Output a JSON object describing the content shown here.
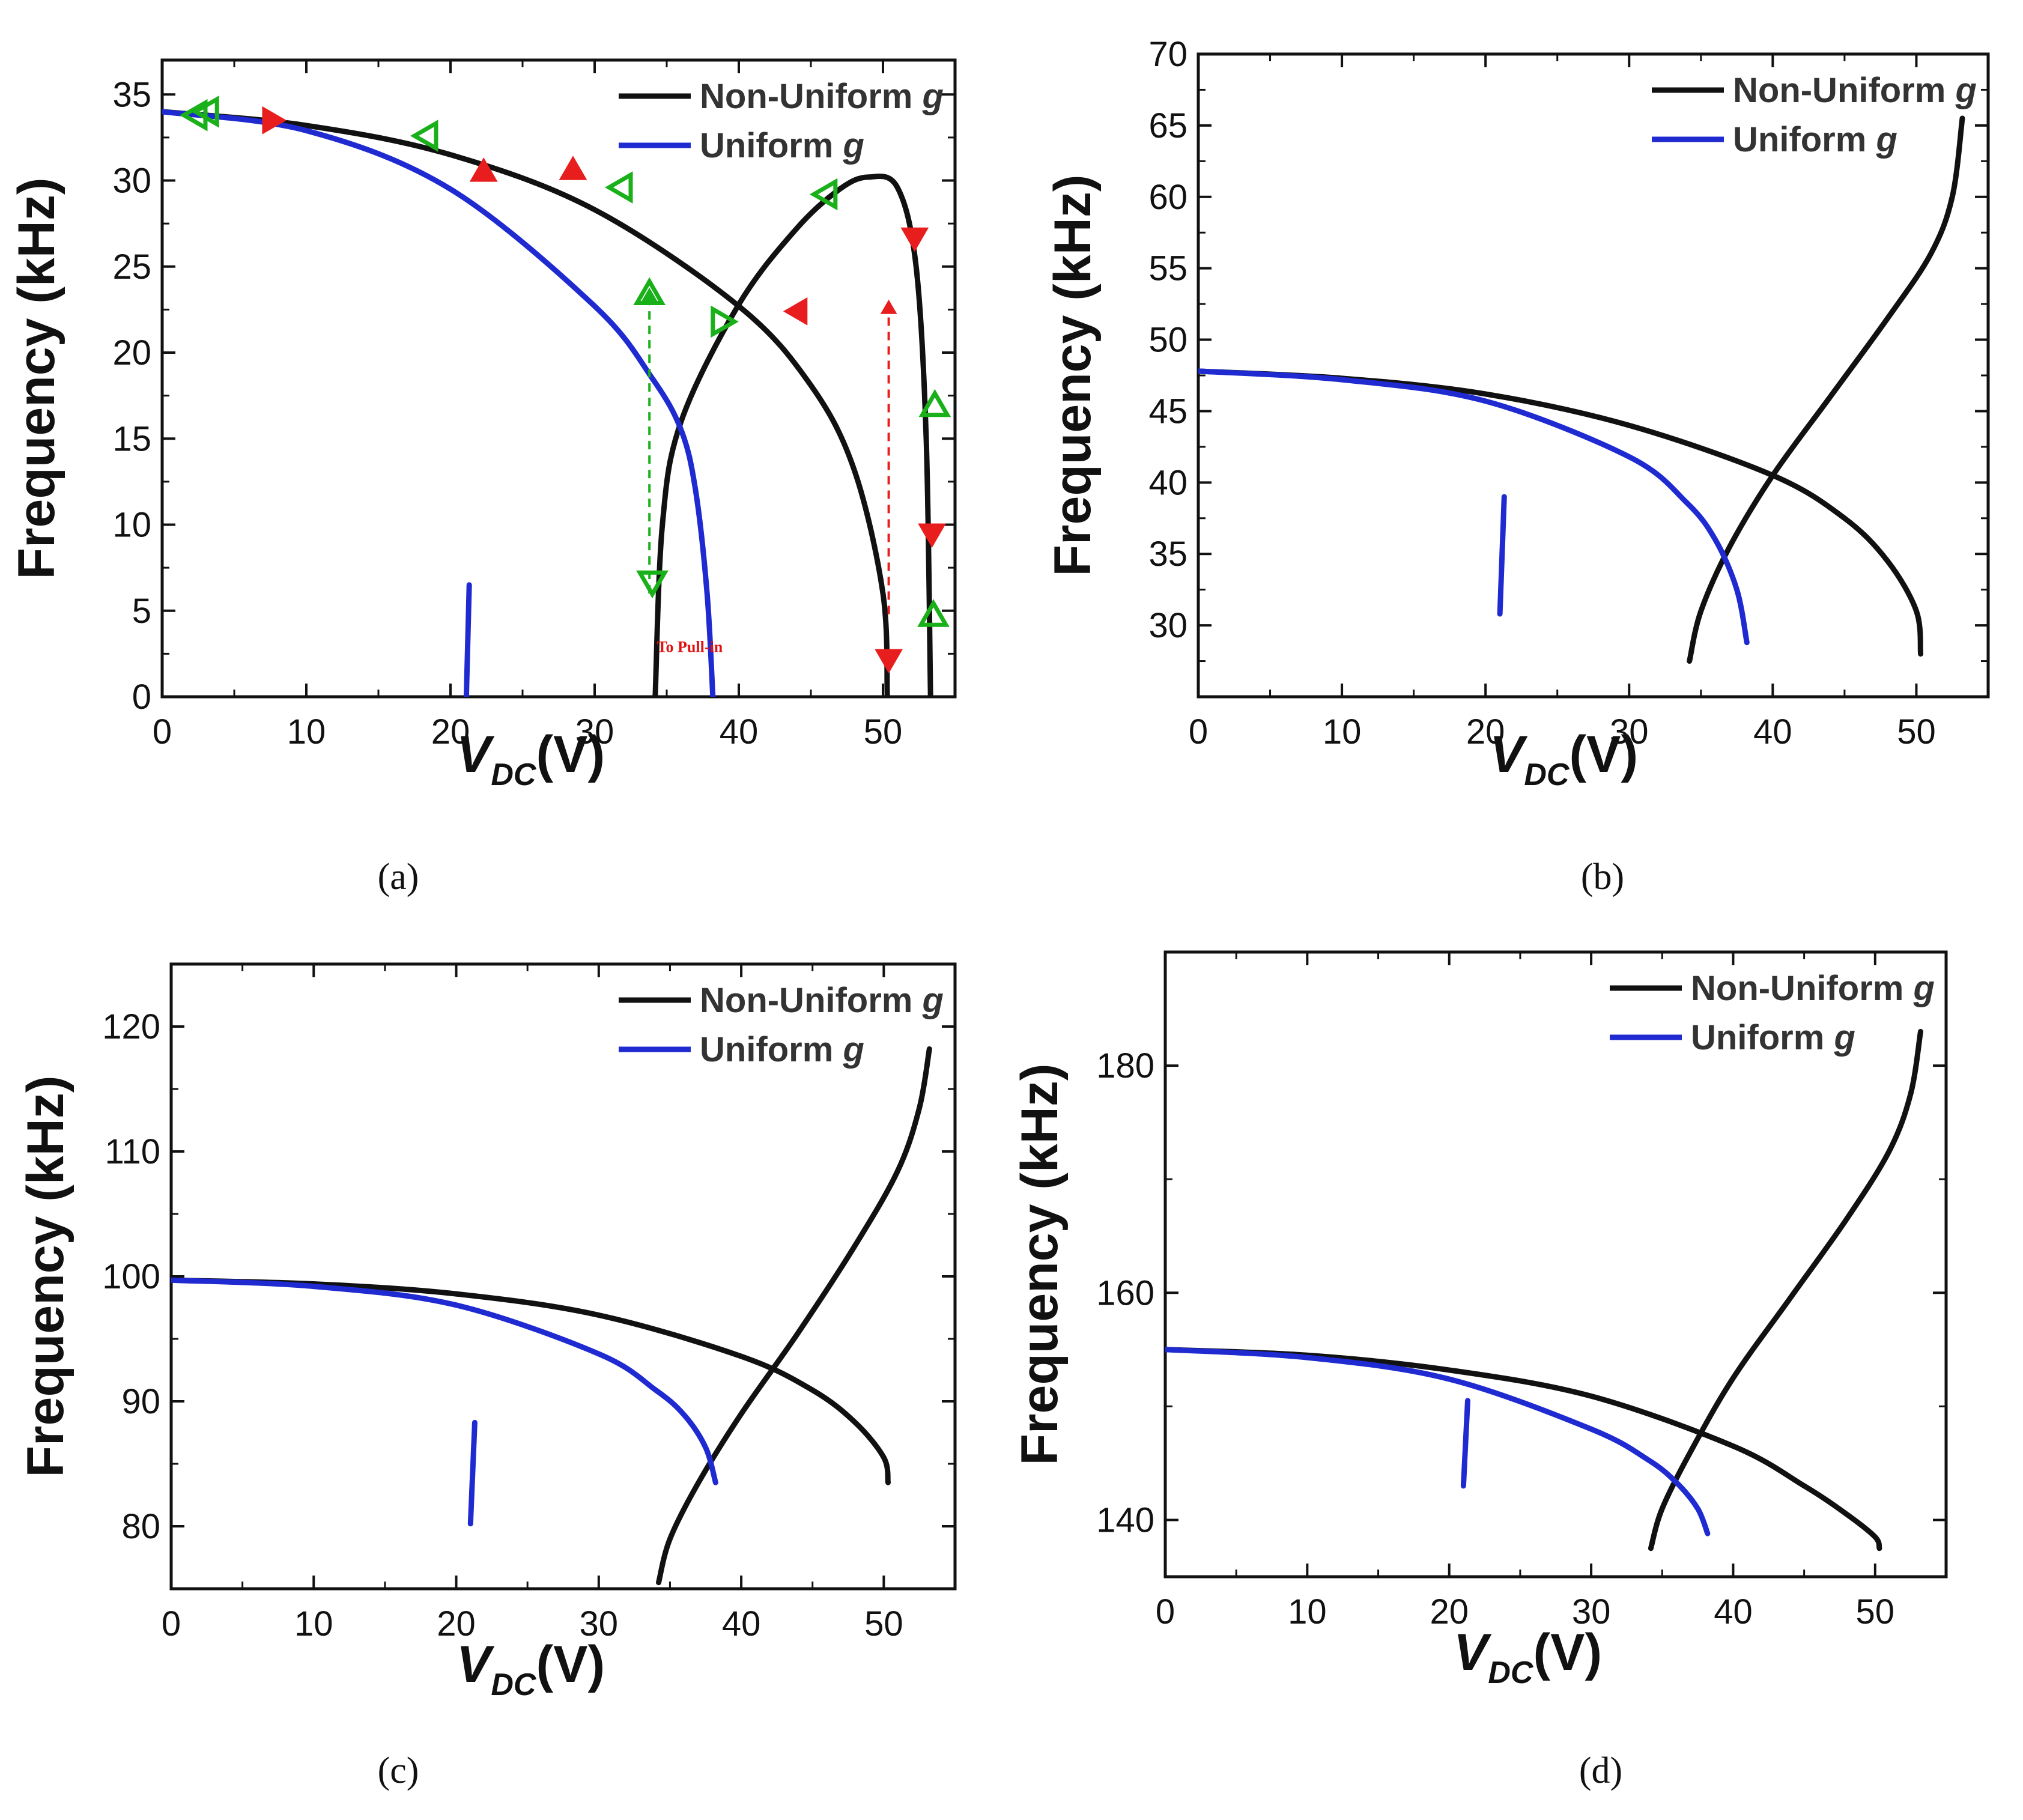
{
  "colors": {
    "non_uniform": "#111111",
    "uniform": "#1f2bd1",
    "marker_green": "#19b019",
    "marker_red": "#e81e1e"
  },
  "chart_data": [
    {
      "panel": "(a)",
      "type": "line",
      "xlabel": "V",
      "xlabel_sub": "DC",
      "xlabel_unit": "(V)",
      "ylabel": "Frequency (kHz)",
      "xlim": [
        0,
        55
      ],
      "ylim": [
        0,
        37
      ],
      "xticks": [
        0,
        10,
        20,
        30,
        40,
        50
      ],
      "yticks": [
        0,
        5,
        10,
        15,
        20,
        25,
        30,
        35
      ],
      "legend": [
        "Non-Uniform",
        "Uniform"
      ],
      "legend_italic": "g",
      "annotation": "To Pull-in",
      "series": [
        {
          "name": "Non-Uniform g (branch 1)",
          "color_key": "non_uniform",
          "x": [
            0,
            10,
            20,
            30,
            40,
            45,
            48,
            50,
            50.3
          ],
          "y": [
            34,
            33.2,
            31.5,
            28.3,
            22.7,
            18.1,
            13.2,
            6,
            0
          ]
        },
        {
          "name": "Non-Uniform g (branch 2)",
          "color_key": "non_uniform",
          "x": [
            34.2,
            34.7,
            36,
            40,
            44,
            47,
            49,
            51,
            52.3,
            53,
            53.3
          ],
          "y": [
            0,
            10,
            16,
            22.8,
            27.2,
            29.5,
            30.2,
            29.6,
            25,
            15,
            0
          ]
        },
        {
          "name": "Uniform g (branch 1)",
          "color_key": "uniform",
          "x": [
            0,
            10,
            20,
            30,
            34,
            36,
            37,
            37.8,
            38.2
          ],
          "y": [
            34,
            32.9,
            29.5,
            22.7,
            18.5,
            15.5,
            12,
            6,
            0
          ]
        },
        {
          "name": "Uniform g (branch 2)",
          "color_key": "uniform",
          "x": [
            21.1,
            21.3
          ],
          "y": [
            0,
            6.5
          ]
        }
      ],
      "markers": [
        {
          "x": 2.5,
          "y": 33.8,
          "color_key": "marker_green",
          "dir": "left"
        },
        {
          "x": 3.3,
          "y": 34.0,
          "color_key": "marker_green",
          "dir": "left"
        },
        {
          "x": 7.5,
          "y": 33.5,
          "color_key": "marker_red",
          "dir": "right"
        },
        {
          "x": 18.5,
          "y": 32.6,
          "color_key": "marker_green",
          "dir": "left"
        },
        {
          "x": 22.3,
          "y": 30.4,
          "color_key": "marker_red",
          "dir": "up"
        },
        {
          "x": 28.5,
          "y": 30.5,
          "color_key": "marker_red",
          "dir": "up"
        },
        {
          "x": 32.0,
          "y": 29.6,
          "color_key": "marker_green",
          "dir": "left"
        },
        {
          "x": 33.8,
          "y": 23.3,
          "color_key": "marker_green",
          "dir": "up"
        },
        {
          "x": 38.7,
          "y": 21.8,
          "color_key": "marker_green",
          "dir": "right"
        },
        {
          "x": 44.2,
          "y": 22.4,
          "color_key": "marker_red",
          "dir": "left"
        },
        {
          "x": 46.2,
          "y": 29.2,
          "color_key": "marker_green",
          "dir": "left"
        },
        {
          "x": 52.2,
          "y": 26.8,
          "color_key": "marker_red",
          "dir": "down"
        },
        {
          "x": 53.6,
          "y": 16.8,
          "color_key": "marker_green",
          "dir": "up"
        },
        {
          "x": 53.4,
          "y": 9.6,
          "color_key": "marker_red",
          "dir": "down"
        },
        {
          "x": 53.5,
          "y": 4.6,
          "color_key": "marker_green",
          "dir": "up"
        },
        {
          "x": 34.0,
          "y": 6.8,
          "color_key": "marker_green",
          "dir": "down"
        },
        {
          "x": 50.4,
          "y": 2.3,
          "color_key": "marker_red",
          "dir": "down"
        }
      ],
      "dashed_arrows": [
        {
          "x": 33.8,
          "y0": 6.0,
          "y1": 23.5,
          "color_key": "marker_green"
        },
        {
          "x": 50.4,
          "y0": 4.8,
          "y1": 22.8,
          "color_key": "marker_red"
        }
      ]
    },
    {
      "panel": "(b)",
      "type": "line",
      "xlabel": "V",
      "xlabel_sub": "DC",
      "xlabel_unit": "(V)",
      "ylabel": "Frequency (kHz)",
      "xlim": [
        0,
        55
      ],
      "ylim": [
        25,
        70
      ],
      "xticks": [
        0,
        10,
        20,
        30,
        40,
        50
      ],
      "yticks": [
        30,
        35,
        40,
        45,
        50,
        55,
        60,
        65,
        70
      ],
      "legend": [
        "Non-Uniform",
        "Uniform"
      ],
      "legend_italic": "g",
      "series": [
        {
          "name": "Non-Uniform g (branch 1)",
          "color_key": "non_uniform",
          "x": [
            0,
            10,
            20,
            30,
            40,
            45,
            48,
            50,
            50.3
          ],
          "y": [
            47.8,
            47.3,
            46.2,
            44,
            40.5,
            37.5,
            34.5,
            31,
            28
          ]
        },
        {
          "name": "Non-Uniform g (branch 2)",
          "color_key": "non_uniform",
          "x": [
            34.2,
            35,
            37,
            40,
            44,
            48,
            51,
            52.5,
            53.2
          ],
          "y": [
            27.5,
            31,
            35.5,
            40.5,
            46,
            51.5,
            56,
            60,
            65.5
          ]
        },
        {
          "name": "Uniform g (branch 1)",
          "color_key": "uniform",
          "x": [
            0,
            10,
            20,
            30,
            34,
            36,
            37.5,
            38.2
          ],
          "y": [
            47.8,
            47.2,
            45.7,
            41.8,
            38.6,
            36,
            32.5,
            28.8
          ]
        },
        {
          "name": "Uniform g (branch 2)",
          "color_key": "uniform",
          "x": [
            21.0,
            21.3
          ],
          "y": [
            30.8,
            39
          ]
        }
      ]
    },
    {
      "panel": "(c)",
      "type": "line",
      "xlabel": "V",
      "xlabel_sub": "DC",
      "xlabel_unit": "(V)",
      "ylabel": "Frequency (kHz)",
      "xlim": [
        0,
        55
      ],
      "ylim": [
        75,
        125
      ],
      "xticks": [
        0,
        10,
        20,
        30,
        40,
        50
      ],
      "yticks": [
        80,
        90,
        100,
        110,
        120
      ],
      "legend": [
        "Non-Uniform",
        "Uniform"
      ],
      "legend_italic": "g",
      "series": [
        {
          "name": "Non-Uniform g (branch 1)",
          "color_key": "non_uniform",
          "x": [
            0,
            10,
            20,
            30,
            40,
            45,
            48,
            50,
            50.3
          ],
          "y": [
            99.7,
            99.4,
            98.6,
            96.9,
            93.6,
            90.9,
            88.3,
            85.5,
            83.5
          ]
        },
        {
          "name": "Non-Uniform g (branch 2)",
          "color_key": "non_uniform",
          "x": [
            34.2,
            35,
            37,
            40,
            44,
            48,
            51,
            52.5,
            53.2
          ],
          "y": [
            75.5,
            79,
            83.5,
            89,
            95.5,
            102.5,
            108.5,
            113.5,
            118.2
          ]
        },
        {
          "name": "Uniform g (branch 1)",
          "color_key": "uniform",
          "x": [
            0,
            10,
            20,
            30,
            34,
            36,
            37.5,
            38.2
          ],
          "y": [
            99.7,
            99.2,
            97.7,
            93.8,
            90.9,
            88.9,
            86.3,
            83.5
          ]
        },
        {
          "name": "Uniform g (branch 2)",
          "color_key": "uniform",
          "x": [
            21.0,
            21.3
          ],
          "y": [
            80.2,
            88.3
          ]
        }
      ]
    },
    {
      "panel": "(d)",
      "type": "line",
      "xlabel": "V",
      "xlabel_sub": "DC",
      "xlabel_unit": "(V)",
      "ylabel": "Frequency (kHz)",
      "xlim": [
        0,
        55
      ],
      "ylim": [
        135,
        190
      ],
      "xticks": [
        0,
        10,
        20,
        30,
        40,
        50
      ],
      "yticks": [
        140,
        160,
        180
      ],
      "legend": [
        "Non-Uniform",
        "Uniform"
      ],
      "legend_italic": "g",
      "series": [
        {
          "name": "Non-Uniform g (branch 1)",
          "color_key": "non_uniform",
          "x": [
            0,
            10,
            20,
            30,
            40,
            45,
            48,
            50,
            50.3
          ],
          "y": [
            155,
            154.5,
            153.2,
            150.9,
            146.5,
            143,
            140.5,
            138.5,
            137.5
          ]
        },
        {
          "name": "Non-Uniform g (branch 2)",
          "color_key": "non_uniform",
          "x": [
            34.2,
            35,
            37,
            40,
            44,
            48,
            51,
            52.5,
            53.2
          ],
          "y": [
            137.5,
            141,
            146,
            152.5,
            159.5,
            166.5,
            172.5,
            177.5,
            183
          ]
        },
        {
          "name": "Uniform g (branch 1)",
          "color_key": "uniform",
          "x": [
            0,
            10,
            20,
            30,
            34,
            36,
            37.5,
            38.2
          ],
          "y": [
            155,
            154.3,
            152.4,
            148,
            145.3,
            143.3,
            141,
            138.8
          ]
        },
        {
          "name": "Uniform g (branch 2)",
          "color_key": "uniform",
          "x": [
            21.0,
            21.3
          ],
          "y": [
            143,
            150.5
          ]
        }
      ]
    }
  ]
}
